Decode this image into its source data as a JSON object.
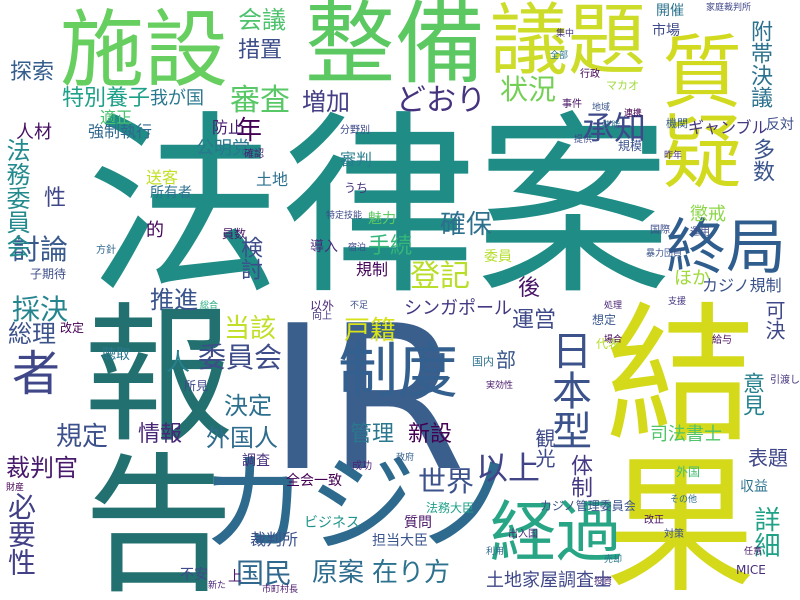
{
  "words": [
    {
      "text": "IR",
      "color": "#3b5f8c"
    },
    {
      "text": "法律案",
      "color": "#1f8c86"
    },
    {
      "text": "報告",
      "color": "#22706f"
    },
    {
      "text": "結果",
      "color": "#d4d91a"
    },
    {
      "text": "カジノ",
      "color": "#2e6a8e"
    },
    {
      "text": "整備",
      "color": "#5bc862"
    },
    {
      "text": "施設",
      "color": "#67cf5f"
    },
    {
      "text": "議題",
      "color": "#cddc28"
    },
    {
      "text": "質疑",
      "color": "#d2da20"
    },
    {
      "text": "制度",
      "color": "#33608f"
    },
    {
      "text": "終局",
      "color": "#2f5d8d"
    },
    {
      "text": "経過",
      "color": "#27a585"
    },
    {
      "text": "日本型",
      "color": "#3b528b"
    },
    {
      "text": "原案",
      "color": "#2f6d8e"
    },
    {
      "text": "在り方",
      "color": "#2c728e"
    },
    {
      "text": "以上",
      "color": "#414487"
    },
    {
      "text": "世界",
      "color": "#3b528b"
    },
    {
      "text": "国民",
      "color": "#31688e"
    },
    {
      "text": "採決",
      "color": "#25858e"
    },
    {
      "text": "者",
      "color": "#3f4788"
    },
    {
      "text": "審査",
      "color": "#58c765"
    },
    {
      "text": "状況",
      "color": "#74d055"
    },
    {
      "text": "承知",
      "color": "#3e4989"
    },
    {
      "text": "どおり",
      "color": "#46337e"
    },
    {
      "text": "増加",
      "color": "#433e85"
    },
    {
      "text": "年",
      "color": "#440154"
    },
    {
      "text": "措置",
      "color": "#3d4e8a"
    },
    {
      "text": "会議",
      "color": "#4cc26c"
    },
    {
      "text": "登記",
      "color": "#b8de29"
    },
    {
      "text": "手続",
      "color": "#35b779"
    },
    {
      "text": "確保",
      "color": "#2e6f8e"
    },
    {
      "text": "推進",
      "color": "#3a548c"
    },
    {
      "text": "当該",
      "color": "#c0df25"
    },
    {
      "text": "戸籍",
      "color": "#d8e219"
    },
    {
      "text": "委員会",
      "color": "#3e4c8a"
    },
    {
      "text": "決定",
      "color": "#2d708e"
    },
    {
      "text": "情報",
      "color": "#482677"
    },
    {
      "text": "外国人",
      "color": "#2f6c8e"
    },
    {
      "text": "規定",
      "color": "#3c508b"
    },
    {
      "text": "総理",
      "color": "#3b528b"
    },
    {
      "text": "必要性",
      "color": "#424086"
    },
    {
      "text": "裁判官",
      "color": "#481a6c"
    },
    {
      "text": "討論",
      "color": "#38598c"
    },
    {
      "text": "性",
      "color": "#3f4788"
    },
    {
      "text": "法務委員会",
      "color": "#238a8d"
    },
    {
      "text": "特別養子",
      "color": "#1fa088"
    },
    {
      "text": "探索",
      "color": "#355e8d"
    },
    {
      "text": "人材",
      "color": "#471063"
    },
    {
      "text": "公明党",
      "color": "#2a778e"
    },
    {
      "text": "検討",
      "color": "#3d4d8a"
    },
    {
      "text": "運営",
      "color": "#3e4989"
    },
    {
      "text": "シンガポール",
      "color": "#453882"
    },
    {
      "text": "後",
      "color": "#471365"
    },
    {
      "text": "ほか",
      "color": "#a0da39"
    },
    {
      "text": "カジノ規制",
      "color": "#3b528b"
    },
    {
      "text": "可決",
      "color": "#3f4889"
    },
    {
      "text": "意見",
      "color": "#26828e"
    },
    {
      "text": "詳細",
      "color": "#1fa187"
    },
    {
      "text": "表題",
      "color": "#3f4788"
    },
    {
      "text": "司法書士",
      "color": "#4fc46a"
    },
    {
      "text": "体制",
      "color": "#443983"
    },
    {
      "text": "附帯決議",
      "color": "#2c728e"
    },
    {
      "text": "多数",
      "color": "#3a548c"
    },
    {
      "text": "管理",
      "color": "#2a778e"
    },
    {
      "text": "新設",
      "color": "#440154"
    },
    {
      "text": "土地家屋調査士",
      "color": "#3f4788"
    },
    {
      "text": "観光",
      "color": "#3e4989"
    },
    {
      "text": "部",
      "color": "#39568c"
    },
    {
      "text": "人",
      "color": "#27808e"
    },
    {
      "text": "我が国",
      "color": "#2a788e"
    },
    {
      "text": "強制執行",
      "color": "#31688e"
    },
    {
      "text": "適正",
      "color": "#4ac16d"
    },
    {
      "text": "防止",
      "color": "#481f70"
    },
    {
      "text": "土地",
      "color": "#2d708e"
    },
    {
      "text": "所有者",
      "color": "#2d718e"
    },
    {
      "text": "送客",
      "color": "#c2df23"
    },
    {
      "text": "懲戒",
      "color": "#8bd646"
    },
    {
      "text": "的",
      "color": "#450559"
    },
    {
      "text": "委員",
      "color": "#b5de2b"
    },
    {
      "text": "規制",
      "color": "#450659"
    },
    {
      "text": "導入",
      "color": "#472c7a"
    },
    {
      "text": "魅力",
      "color": "#5ec962"
    },
    {
      "text": "審判",
      "color": "#287c8e"
    },
    {
      "text": "ギャンブル",
      "color": "#453781"
    },
    {
      "text": "反対",
      "color": "#3d4e8a"
    },
    {
      "text": "機関",
      "color": "#365c8d"
    },
    {
      "text": "市場",
      "color": "#3e4a89"
    },
    {
      "text": "開催",
      "color": "#2c738e"
    },
    {
      "text": "全会一致",
      "color": "#440154"
    },
    {
      "text": "調査",
      "color": "#46307e"
    },
    {
      "text": "ビジネス",
      "color": "#1f958b"
    },
    {
      "text": "裁判所",
      "color": "#3b528b"
    },
    {
      "text": "質問",
      "color": "#481668"
    },
    {
      "text": "担当大臣",
      "color": "#3a548c"
    },
    {
      "text": "法務大臣",
      "color": "#1fa088"
    },
    {
      "text": "MICE",
      "color": "#472e7c"
    },
    {
      "text": "収益",
      "color": "#2c728e"
    },
    {
      "text": "カジノ管理委員会",
      "color": "#3b528b"
    },
    {
      "text": "外国",
      "color": "#42be71"
    },
    {
      "text": "聴取",
      "color": "#2a788e"
    },
    {
      "text": "所見",
      "color": "#3f4788"
    },
    {
      "text": "上",
      "color": "#481a6c"
    },
    {
      "text": "不安",
      "color": "#3e4a89"
    },
    {
      "text": "国内",
      "color": "#2d718e"
    },
    {
      "text": "事件",
      "color": "#471365"
    },
    {
      "text": "規模",
      "color": "#3b528b"
    },
    {
      "text": "行政",
      "color": "#440154"
    },
    {
      "text": "向上",
      "color": "#46337e"
    },
    {
      "text": "家庭裁判所",
      "color": "#3f4788"
    },
    {
      "text": "昨年",
      "color": "#472d7b"
    },
    {
      "text": "子期待",
      "color": "#3d4e8a"
    },
    {
      "text": "改定",
      "color": "#440154"
    },
    {
      "text": "方針",
      "color": "#31688e"
    },
    {
      "text": "代表",
      "color": "#b5de2b"
    },
    {
      "text": "給与",
      "color": "#460b5e"
    },
    {
      "text": "改正",
      "color": "#471063"
    },
    {
      "text": "支援",
      "color": "#46337e"
    },
    {
      "text": "想定",
      "color": "#39568c"
    },
    {
      "text": "特定技能",
      "color": "#3e4989"
    },
    {
      "text": "成功",
      "color": "#482374"
    },
    {
      "text": "処理",
      "color": "#482374"
    },
    {
      "text": "政府",
      "color": "#355f8d"
    },
    {
      "text": "出入国",
      "color": "#472c7a"
    },
    {
      "text": "国際",
      "color": "#3d4d8a"
    },
    {
      "text": "引渡し",
      "color": "#46337e"
    },
    {
      "text": "実効性",
      "color": "#481769"
    },
    {
      "text": "市町村長",
      "color": "#481769"
    },
    {
      "text": "売却",
      "color": "#2a768e"
    },
    {
      "text": "連携",
      "color": "#440154"
    },
    {
      "text": "総合",
      "color": "#27ad81"
    },
    {
      "text": "暴力団員",
      "color": "#3a548c"
    },
    {
      "text": "分野別",
      "color": "#3e4a89"
    },
    {
      "text": "マカオ",
      "color": "#9fda3a"
    },
    {
      "text": "提供",
      "color": "#3e4989"
    },
    {
      "text": "利用",
      "color": "#31688e"
    },
    {
      "text": "財産",
      "color": "#440154"
    },
    {
      "text": "その他",
      "color": "#2f6c8e"
    },
    {
      "text": "投資",
      "color": "#482878"
    },
    {
      "text": "任意",
      "color": "#481769"
    },
    {
      "text": "新た",
      "color": "#482475"
    },
    {
      "text": "地域",
      "color": "#3a548c"
    },
    {
      "text": "うち",
      "color": "#46327e"
    },
    {
      "text": "技能",
      "color": "#2c738e"
    },
    {
      "text": "運用",
      "color": "#3d4e8a"
    },
    {
      "text": "確認",
      "color": "#481d6f"
    },
    {
      "text": "全部",
      "color": "#2b758e"
    },
    {
      "text": "集中",
      "color": "#46327e"
    },
    {
      "text": "員数",
      "color": "#481769"
    },
    {
      "text": "以外",
      "color": "#482576"
    },
    {
      "text": "不足",
      "color": "#3c508b"
    },
    {
      "text": "対策",
      "color": "#3c4f8a"
    },
    {
      "text": "場合",
      "color": "#46075a"
    },
    {
      "text": "宿泊",
      "color": "#3e4a89"
    }
  ]
}
